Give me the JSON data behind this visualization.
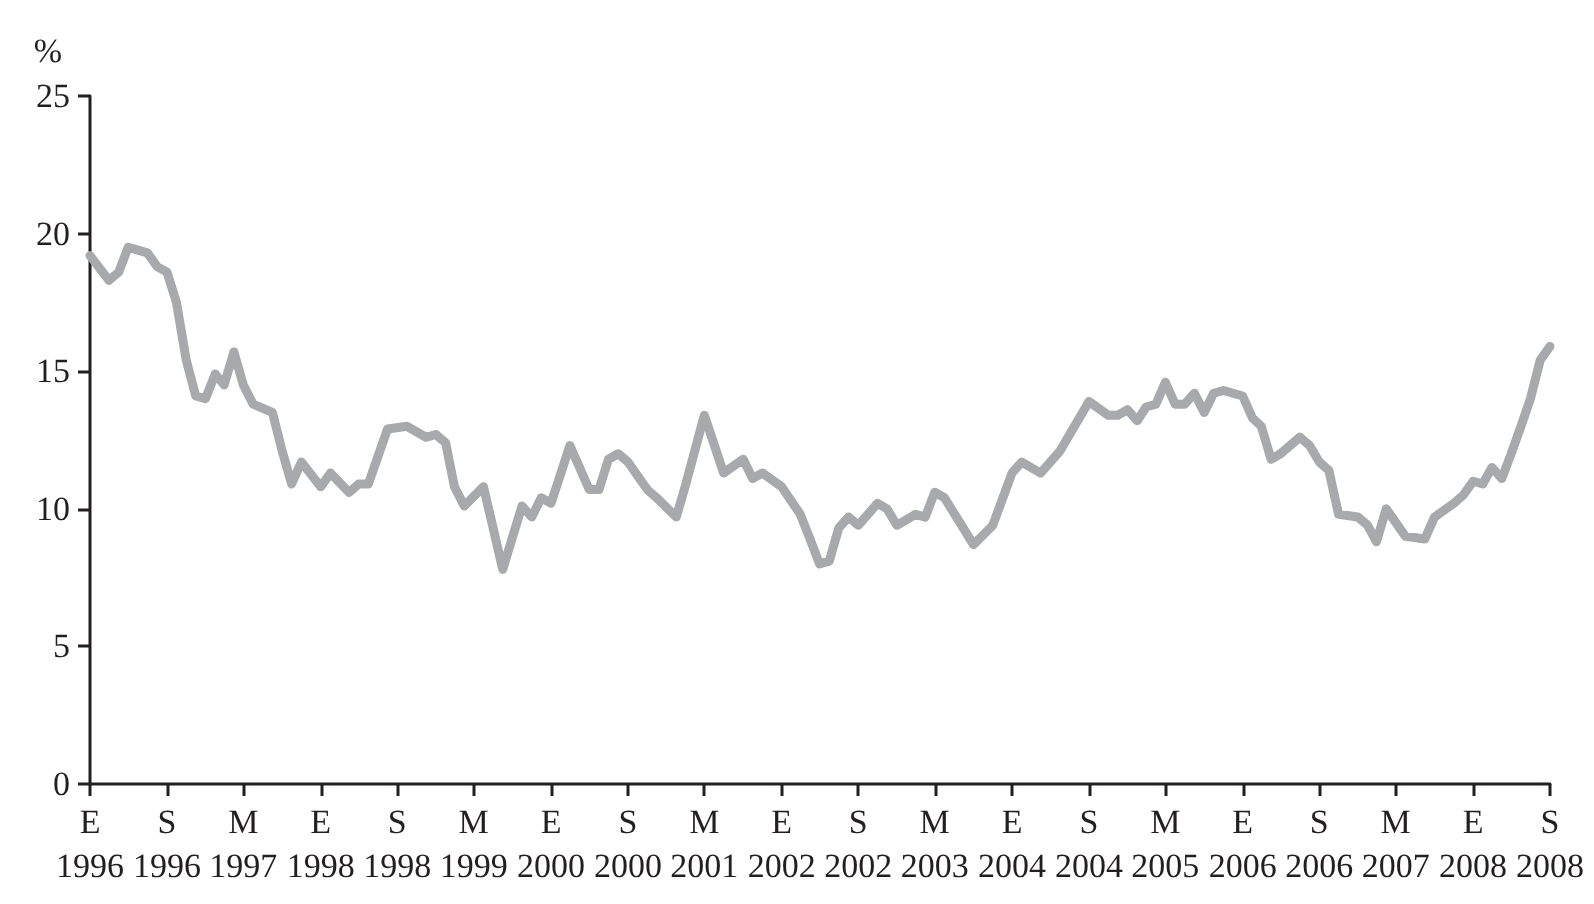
{
  "chart_data": {
    "type": "line",
    "ylabel": "%",
    "color": "#a7a9ac",
    "line_style": "solid",
    "marker": "none",
    "grid": false,
    "xlim": [
      "1996-01",
      "2008-09"
    ],
    "ylim": [
      0,
      25
    ],
    "yticks": [
      0,
      5,
      10,
      15,
      20,
      25
    ],
    "xticks": [
      {
        "value": "1996-01",
        "label": "E\n1996"
      },
      {
        "value": "1996-09",
        "label": "S\n1996"
      },
      {
        "value": "1997-05",
        "label": "M\n1997"
      },
      {
        "value": "1998-01",
        "label": "E\n1998"
      },
      {
        "value": "1998-09",
        "label": "S\n1998"
      },
      {
        "value": "1999-05",
        "label": "M\n1999"
      },
      {
        "value": "2000-01",
        "label": "E\n2000"
      },
      {
        "value": "2000-09",
        "label": "S\n2000"
      },
      {
        "value": "2001-05",
        "label": "M\n2001"
      },
      {
        "value": "2002-01",
        "label": "E\n2002"
      },
      {
        "value": "2002-09",
        "label": "S\n2002"
      },
      {
        "value": "2003-05",
        "label": "M\n2003"
      },
      {
        "value": "2004-01",
        "label": "E\n2004"
      },
      {
        "value": "2004-09",
        "label": "S\n2004"
      },
      {
        "value": "2005-05",
        "label": "M\n2005"
      },
      {
        "value": "2006-01",
        "label": "E\n2006"
      },
      {
        "value": "2006-09",
        "label": "S\n2006"
      },
      {
        "value": "2007-05",
        "label": "M\n2007"
      },
      {
        "value": "2008-01",
        "label": "E\n2008"
      },
      {
        "value": "2008-09",
        "label": "S\n2008"
      }
    ],
    "x": [
      "1996-01",
      "1996-03",
      "1996-04",
      "1996-05",
      "1996-06",
      "1996-07",
      "1996-08",
      "1996-09",
      "1996-10",
      "1996-11",
      "1996-12",
      "1997-01",
      "1997-02",
      "1997-03",
      "1997-04",
      "1997-05",
      "1997-06",
      "1997-08",
      "1997-09",
      "1997-10",
      "1997-11",
      "1998-01",
      "1998-02",
      "1998-04",
      "1998-05",
      "1998-06",
      "1998-08",
      "1998-10",
      "1998-12",
      "1999-01",
      "1999-02",
      "1999-03",
      "1999-04",
      "1999-06",
      "1999-08",
      "1999-10",
      "1999-11",
      "1999-12",
      "2000-01",
      "2000-03",
      "2000-05",
      "2000-06",
      "2000-07",
      "2000-08",
      "2000-09",
      "2000-11",
      "2000-12",
      "2001-02",
      "2001-03",
      "2001-05",
      "2001-07",
      "2001-09",
      "2001-10",
      "2001-11",
      "2002-01",
      "2002-03",
      "2002-04",
      "2002-05",
      "2002-06",
      "2002-07",
      "2002-08",
      "2002-09",
      "2002-11",
      "2002-12",
      "2003-01",
      "2003-03",
      "2003-04",
      "2003-05",
      "2003-06",
      "2003-09",
      "2003-11",
      "2004-01",
      "2004-02",
      "2004-04",
      "2004-06",
      "2004-09",
      "2004-11",
      "2004-12",
      "2005-01",
      "2005-02",
      "2005-03",
      "2005-04",
      "2005-05",
      "2005-06",
      "2005-07",
      "2005-08",
      "2005-09",
      "2005-10",
      "2005-11",
      "2006-01",
      "2006-02",
      "2006-03",
      "2006-04",
      "2006-05",
      "2006-07",
      "2006-08",
      "2006-09",
      "2006-10",
      "2006-11",
      "2007-01",
      "2007-02",
      "2007-03",
      "2007-04",
      "2007-06",
      "2007-08",
      "2007-09",
      "2007-11",
      "2007-12",
      "2008-01",
      "2008-02",
      "2008-03",
      "2008-04",
      "2008-05",
      "2008-06",
      "2008-07",
      "2008-08",
      "2008-09"
    ],
    "values": [
      19.2,
      18.3,
      18.6,
      19.5,
      19.4,
      19.3,
      18.8,
      18.6,
      17.5,
      15.4,
      14.1,
      14.0,
      14.9,
      14.5,
      15.7,
      14.5,
      13.8,
      13.5,
      12.1,
      10.9,
      11.7,
      10.8,
      11.3,
      10.6,
      10.9,
      10.9,
      12.9,
      13.0,
      12.6,
      12.7,
      12.4,
      10.8,
      10.1,
      10.8,
      7.8,
      10.1,
      9.7,
      10.4,
      10.2,
      12.3,
      10.7,
      10.7,
      11.8,
      12.0,
      11.7,
      10.7,
      10.4,
      9.7,
      10.8,
      13.4,
      11.3,
      11.8,
      11.1,
      11.3,
      10.8,
      9.8,
      8.9,
      8.0,
      8.1,
      9.3,
      9.7,
      9.4,
      10.2,
      10.0,
      9.4,
      9.8,
      9.7,
      10.6,
      10.4,
      8.7,
      9.4,
      11.3,
      11.7,
      11.3,
      12.1,
      13.9,
      13.4,
      13.4,
      13.6,
      13.2,
      13.7,
      13.8,
      14.6,
      13.8,
      13.8,
      14.2,
      13.5,
      14.2,
      14.3,
      14.1,
      13.3,
      13.0,
      11.8,
      12.0,
      12.6,
      12.3,
      11.7,
      11.4,
      9.8,
      9.7,
      9.4,
      8.8,
      10.0,
      9.0,
      8.9,
      9.7,
      10.2,
      10.5,
      11.0,
      10.9,
      11.5,
      11.1,
      12.0,
      13.0,
      14.0,
      15.4,
      15.9
    ]
  }
}
